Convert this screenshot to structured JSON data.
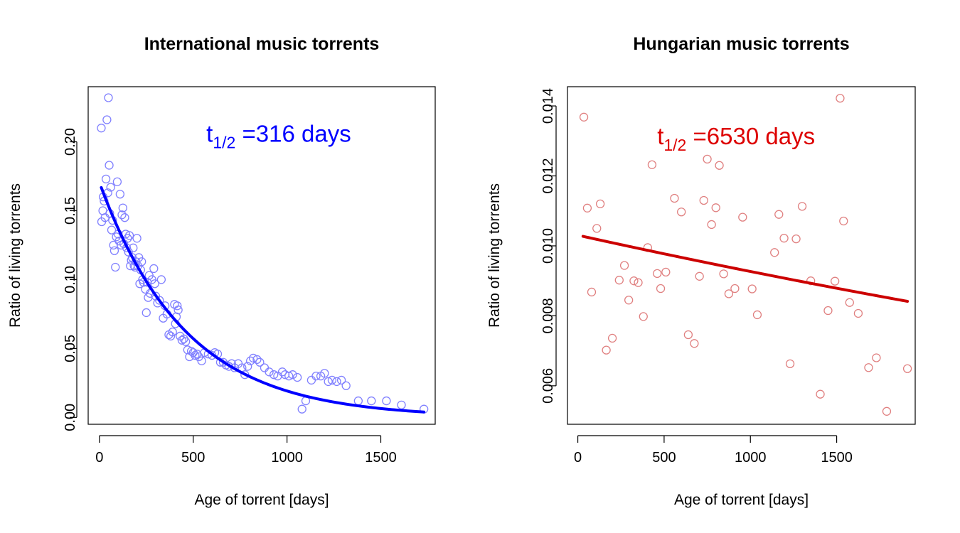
{
  "chart_data": [
    {
      "type": "scatter",
      "title": "International music torrents",
      "xlabel": "Age of torrent [days]",
      "ylabel": "Ratio of living torrents",
      "xlim": [
        -60,
        1790
      ],
      "ylim": [
        -0.005,
        0.24
      ],
      "xticks": [
        0,
        500,
        1000,
        1500
      ],
      "xtick_labels": [
        "0",
        "500",
        "1000",
        "1500"
      ],
      "yticks": [
        0,
        0.05,
        0.1,
        0.15,
        0.2
      ],
      "ytick_labels": [
        "0.00",
        "0.05",
        "0.10",
        "0.15",
        "0.20"
      ],
      "grid": false,
      "annotation": {
        "base": "t",
        "sub": "1/2",
        "text": " =316 days",
        "x": 570,
        "y": 0.2,
        "color": "#0000ff"
      },
      "series": [
        {
          "kind": "points",
          "color": "#8080ff",
          "points": [
            [
              10,
              0.21
            ],
            [
              12,
              0.142
            ],
            [
              18,
              0.15
            ],
            [
              20,
              0.16
            ],
            [
              25,
              0.157
            ],
            [
              30,
              0.145
            ],
            [
              35,
              0.173
            ],
            [
              40,
              0.216
            ],
            [
              45,
              0.163
            ],
            [
              48,
              0.232
            ],
            [
              52,
              0.183
            ],
            [
              55,
              0.148
            ],
            [
              60,
              0.167
            ],
            [
              65,
              0.136
            ],
            [
              70,
              0.143
            ],
            [
              75,
              0.125
            ],
            [
              80,
              0.121
            ],
            [
              85,
              0.109
            ],
            [
              90,
              0.131
            ],
            [
              95,
              0.171
            ],
            [
              100,
              0.133
            ],
            [
              105,
              0.128
            ],
            [
              110,
              0.162
            ],
            [
              115,
              0.125
            ],
            [
              120,
              0.147
            ],
            [
              125,
              0.152
            ],
            [
              130,
              0.126
            ],
            [
              135,
              0.145
            ],
            [
              140,
              0.133
            ],
            [
              145,
              0.123
            ],
            [
              150,
              0.13
            ],
            [
              155,
              0.12
            ],
            [
              160,
              0.132
            ],
            [
              165,
              0.11
            ],
            [
              170,
              0.114
            ],
            [
              175,
              0.116
            ],
            [
              180,
              0.123
            ],
            [
              185,
              0.11
            ],
            [
              190,
              0.109
            ],
            [
              195,
              0.113
            ],
            [
              200,
              0.13
            ],
            [
              205,
              0.11
            ],
            [
              210,
              0.116
            ],
            [
              215,
              0.097
            ],
            [
              220,
              0.107
            ],
            [
              225,
              0.113
            ],
            [
              230,
              0.1
            ],
            [
              235,
              0.098
            ],
            [
              245,
              0.093
            ],
            [
              250,
              0.076
            ],
            [
              255,
              0.098
            ],
            [
              260,
              0.087
            ],
            [
              265,
              0.103
            ],
            [
              270,
              0.09
            ],
            [
              280,
              0.1
            ],
            [
              290,
              0.108
            ],
            [
              295,
              0.097
            ],
            [
              300,
              0.088
            ],
            [
              310,
              0.083
            ],
            [
              320,
              0.085
            ],
            [
              330,
              0.1
            ],
            [
              340,
              0.072
            ],
            [
              350,
              0.081
            ],
            [
              360,
              0.075
            ],
            [
              370,
              0.06
            ],
            [
              380,
              0.059
            ],
            [
              390,
              0.062
            ],
            [
              400,
              0.082
            ],
            [
              405,
              0.068
            ],
            [
              410,
              0.073
            ],
            [
              415,
              0.081
            ],
            [
              420,
              0.078
            ],
            [
              430,
              0.059
            ],
            [
              440,
              0.056
            ],
            [
              450,
              0.057
            ],
            [
              460,
              0.055
            ],
            [
              470,
              0.049
            ],
            [
              480,
              0.044
            ],
            [
              490,
              0.048
            ],
            [
              500,
              0.047
            ],
            [
              510,
              0.045
            ],
            [
              520,
              0.046
            ],
            [
              530,
              0.044
            ],
            [
              545,
              0.041
            ],
            [
              560,
              0.047
            ],
            [
              580,
              0.046
            ],
            [
              600,
              0.045
            ],
            [
              615,
              0.047
            ],
            [
              630,
              0.046
            ],
            [
              645,
              0.04
            ],
            [
              660,
              0.04
            ],
            [
              675,
              0.038
            ],
            [
              690,
              0.037
            ],
            [
              705,
              0.039
            ],
            [
              720,
              0.036
            ],
            [
              740,
              0.039
            ],
            [
              760,
              0.036
            ],
            [
              775,
              0.031
            ],
            [
              790,
              0.037
            ],
            [
              805,
              0.041
            ],
            [
              820,
              0.043
            ],
            [
              840,
              0.042
            ],
            [
              855,
              0.04
            ],
            [
              880,
              0.036
            ],
            [
              905,
              0.033
            ],
            [
              930,
              0.031
            ],
            [
              950,
              0.03
            ],
            [
              975,
              0.033
            ],
            [
              990,
              0.031
            ],
            [
              1010,
              0.03
            ],
            [
              1030,
              0.031
            ],
            [
              1055,
              0.029
            ],
            [
              1080,
              0.006
            ],
            [
              1100,
              0.012
            ],
            [
              1130,
              0.027
            ],
            [
              1155,
              0.03
            ],
            [
              1180,
              0.03
            ],
            [
              1200,
              0.032
            ],
            [
              1220,
              0.026
            ],
            [
              1240,
              0.027
            ],
            [
              1265,
              0.026
            ],
            [
              1290,
              0.027
            ],
            [
              1315,
              0.023
            ],
            [
              1380,
              0.012
            ],
            [
              1450,
              0.012
            ],
            [
              1530,
              0.012
            ],
            [
              1610,
              0.009
            ],
            [
              1730,
              0.006
            ]
          ]
        },
        {
          "kind": "fit",
          "color": "#0000ff",
          "model": "exponential",
          "a": 0.1705,
          "rate": -0.002185,
          "x_range": [
            10,
            1730
          ]
        }
      ]
    },
    {
      "type": "scatter",
      "title": "Hungarian music torrents",
      "xlabel": "Age of torrent [days]",
      "ylabel": "Ratio of living torrents",
      "xlim": [
        -60,
        1955
      ],
      "ylim": [
        0.0049,
        0.01455
      ],
      "xticks": [
        0,
        500,
        1000,
        1500
      ],
      "xtick_labels": [
        "0",
        "500",
        "1000",
        "1500"
      ],
      "yticks": [
        0.006,
        0.008,
        0.01,
        0.012,
        0.014
      ],
      "ytick_labels": [
        "0.006",
        "0.008",
        "0.010",
        "0.012",
        "0.014"
      ],
      "grid": false,
      "annotation": {
        "base": "t",
        "sub": "1/2",
        "text": " =6530 days",
        "x": 460,
        "y": 0.0129,
        "color": "#dd0000"
      },
      "series": [
        {
          "kind": "points",
          "color": "#e08080",
          "points": [
            [
              35,
              0.01368
            ],
            [
              55,
              0.01108
            ],
            [
              80,
              0.00868
            ],
            [
              110,
              0.0105
            ],
            [
              130,
              0.0112
            ],
            [
              165,
              0.00702
            ],
            [
              200,
              0.00736
            ],
            [
              240,
              0.00902
            ],
            [
              270,
              0.00944
            ],
            [
              295,
              0.00845
            ],
            [
              325,
              0.009
            ],
            [
              350,
              0.00895
            ],
            [
              380,
              0.00798
            ],
            [
              405,
              0.00995
            ],
            [
              430,
              0.01232
            ],
            [
              460,
              0.00921
            ],
            [
              480,
              0.00878
            ],
            [
              510,
              0.00925
            ],
            [
              560,
              0.01136
            ],
            [
              600,
              0.01097
            ],
            [
              640,
              0.00746
            ],
            [
              675,
              0.00721
            ],
            [
              705,
              0.00913
            ],
            [
              730,
              0.0113
            ],
            [
              750,
              0.01248
            ],
            [
              775,
              0.01061
            ],
            [
              800,
              0.01109
            ],
            [
              820,
              0.0123
            ],
            [
              845,
              0.0092
            ],
            [
              875,
              0.00863
            ],
            [
              910,
              0.00878
            ],
            [
              955,
              0.01082
            ],
            [
              1010,
              0.00877
            ],
            [
              1040,
              0.00803
            ],
            [
              1140,
              0.00981
            ],
            [
              1165,
              0.0109
            ],
            [
              1195,
              0.01022
            ],
            [
              1230,
              0.00663
            ],
            [
              1265,
              0.0102
            ],
            [
              1300,
              0.01113
            ],
            [
              1350,
              0.009
            ],
            [
              1405,
              0.00576
            ],
            [
              1450,
              0.00815
            ],
            [
              1490,
              0.00899
            ],
            [
              1540,
              0.01071
            ],
            [
              1520,
              0.01422
            ],
            [
              1575,
              0.00838
            ],
            [
              1625,
              0.00807
            ],
            [
              1685,
              0.00652
            ],
            [
              1730,
              0.0068
            ],
            [
              1790,
              0.00527
            ],
            [
              1910,
              0.00649
            ]
          ]
        },
        {
          "kind": "fit",
          "color": "#cc0000",
          "model": "exponential",
          "a": 0.010305,
          "rate": -0.0001061,
          "x_range": [
            30,
            1910
          ]
        }
      ]
    }
  ]
}
